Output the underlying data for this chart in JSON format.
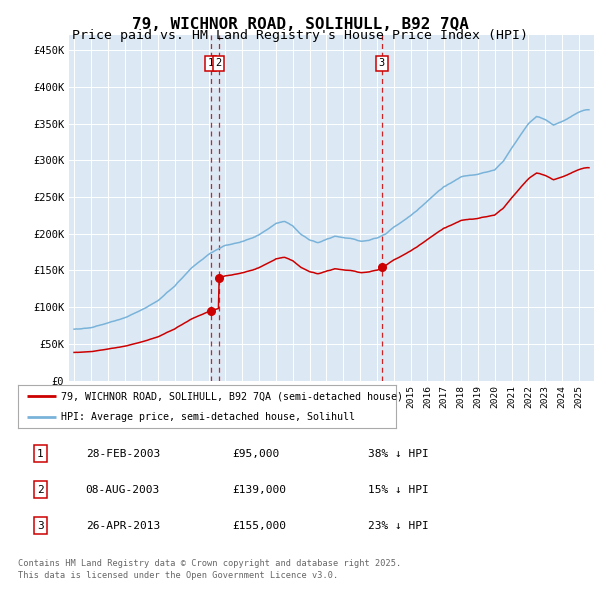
{
  "title": "79, WICHNOR ROAD, SOLIHULL, B92 7QA",
  "subtitle": "Price paid vs. HM Land Registry's House Price Index (HPI)",
  "title_fontsize": 11.5,
  "subtitle_fontsize": 9.5,
  "plot_bg_color": "#dce9f5",
  "hpi_color": "#7ab3d9",
  "price_color": "#cc0000",
  "ylim": [
    0,
    470000
  ],
  "yticks": [
    0,
    50000,
    100000,
    150000,
    200000,
    250000,
    300000,
    350000,
    400000,
    450000
  ],
  "ytick_labels": [
    "£0",
    "£50K",
    "£100K",
    "£150K",
    "£200K",
    "£250K",
    "£300K",
    "£350K",
    "£400K",
    "£450K"
  ],
  "xmin": 1994.7,
  "xmax": 2025.9,
  "transactions": [
    {
      "label": "1",
      "date": "28-FEB-2003",
      "price": 95000,
      "x_year": 2003.12
    },
    {
      "label": "2",
      "date": "08-AUG-2003",
      "price": 139000,
      "x_year": 2003.6
    },
    {
      "label": "3",
      "date": "26-APR-2013",
      "price": 155000,
      "x_year": 2013.29
    }
  ],
  "legend_property_label": "79, WICHNOR ROAD, SOLIHULL, B92 7QA (semi-detached house)",
  "legend_hpi_label": "HPI: Average price, semi-detached house, Solihull",
  "footer_line1": "Contains HM Land Registry data © Crown copyright and database right 2025.",
  "footer_line2": "This data is licensed under the Open Government Licence v3.0.",
  "table_rows": [
    [
      "1",
      "28-FEB-2003",
      "£95,000",
      "38% ↓ HPI"
    ],
    [
      "2",
      "08-AUG-2003",
      "£139,000",
      "15% ↓ HPI"
    ],
    [
      "3",
      "26-APR-2013",
      "£155,000",
      "23% ↓ HPI"
    ]
  ]
}
